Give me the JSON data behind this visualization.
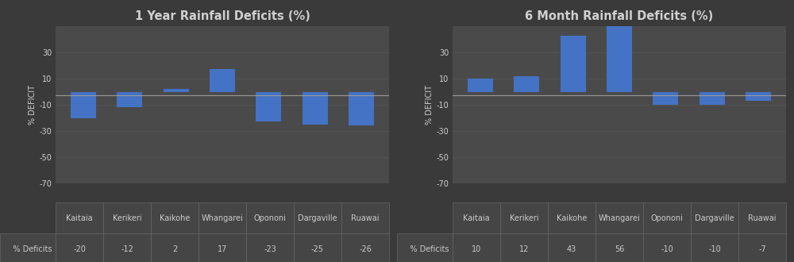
{
  "chart1": {
    "title": "1 Year Rainfall Deficits (%)",
    "categories": [
      "Kaitaia",
      "Kerikeri",
      "Kaikohe",
      "Whangarei",
      "Opononi",
      "Dargaville",
      "Ruawai"
    ],
    "values": [
      -20,
      -12,
      2,
      17,
      -23,
      -25,
      -26
    ],
    "legend_label": "% Deficits"
  },
  "chart2": {
    "title": "6 Month Rainfall Deficits (%)",
    "categories": [
      "Kaitaia",
      "Kerikeri",
      "Kaikohe",
      "Whangarei",
      "Opononi",
      "Dargaville",
      "Ruawai"
    ],
    "values": [
      10,
      12,
      43,
      56,
      -10,
      -10,
      -7
    ],
    "legend_label": "% Deficits"
  },
  "bar_color": "#4472C4",
  "bg_color": "#3a3a3a",
  "plot_bg_color": "#4a4a4a",
  "text_color": "#d0d0d0",
  "grid_color": "#5a5a5a",
  "hline_color": "#999999",
  "ylabel": "% DEFICIT",
  "ylim": [
    -70,
    50
  ],
  "yticks": [
    -70,
    -50,
    -30,
    -10,
    10,
    30
  ],
  "title_fontsize": 10.5,
  "tick_fontsize": 7,
  "ylabel_fontsize": 7,
  "table_fontsize": 7,
  "table_text_color": "#cccccc",
  "table_bg_color": "#454545",
  "table_edge_color": "#666666",
  "legend_box_color": "#4472C4"
}
